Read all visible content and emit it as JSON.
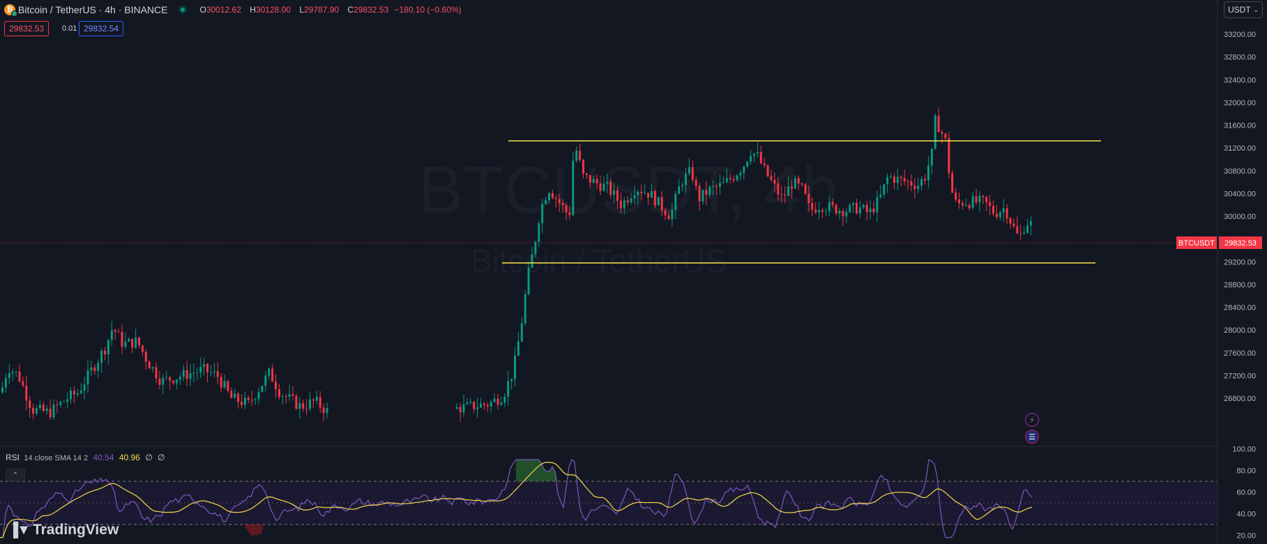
{
  "header": {
    "symbol_title": "Bitcoin / TetherUS · 4h · BINANCE",
    "ohlc": [
      {
        "label": "O",
        "value": "30012.62"
      },
      {
        "label": "H",
        "value": "30128.00"
      },
      {
        "label": "L",
        "value": "29787.90"
      },
      {
        "label": "C",
        "value": "29832.53"
      }
    ],
    "change": "−180.10 (−0.60%)",
    "sell_price": "29832.53",
    "spread": "0.01",
    "buy_price": "29832.54",
    "currency_button": "USDT"
  },
  "watermark": {
    "ticker": "BTCUSDT, 4h",
    "name": "Bitcoin / TetherUS"
  },
  "price_axis": {
    "ticks": [
      "33200.00",
      "32800.00",
      "32400.00",
      "32000.00",
      "31600.00",
      "31200.00",
      "30800.00",
      "30400.00",
      "30000.00",
      "29600.00",
      "29200.00",
      "28800.00",
      "28400.00",
      "28000.00",
      "27600.00",
      "27200.00",
      "26800.00"
    ],
    "last_symbol": "BTCUSDT",
    "last_price": "29832.53"
  },
  "rsi": {
    "label": "RSI",
    "params": "14 close SMA 14 2",
    "rsi_value": "40.54",
    "sma_value": "40.96",
    "extra1": "∅",
    "extra2": "∅",
    "ticks": [
      "100.00",
      "80.00",
      "60.00",
      "40.00",
      "20.00"
    ]
  },
  "branding": {
    "logo": "TradingView"
  },
  "colors": {
    "background": "#131722",
    "up": "#089981",
    "down": "#f23645",
    "trendline": "#f7e94b",
    "rsi_line": "#7e57c2",
    "rsi_sma": "#f7d94b"
  },
  "chart_data": {
    "type": "candlestick",
    "levels": {
      "resistance": 31480,
      "support": 29500,
      "ylim": [
        26500,
        33500
      ]
    },
    "candles_hint": "Range-bound BTCUSDT after breakout from ~27000 to ~30500",
    "rsi_levels": {
      "upper": 70,
      "middle": 50,
      "lower": 30
    }
  }
}
